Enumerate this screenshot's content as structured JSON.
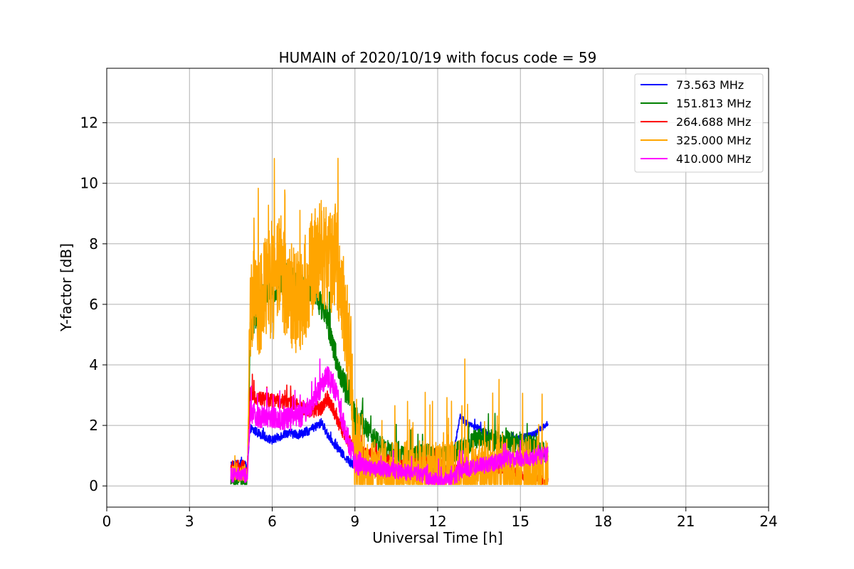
{
  "chart_data": {
    "type": "line",
    "title": "HUMAIN of 2020/10/19 with focus code = 59",
    "xlabel": "Universal Time [h]",
    "ylabel": "Y-factor [dB]",
    "xlim": [
      0,
      24
    ],
    "ylim": [
      -0.7,
      13.8
    ],
    "xticks": [
      0,
      3,
      6,
      9,
      12,
      15,
      18,
      21,
      24
    ],
    "yticks": [
      0,
      2,
      4,
      6,
      8,
      10,
      12
    ],
    "grid": true,
    "legend_position": "top-right",
    "series": [
      {
        "name": " 73.563 MHz",
        "color": "#0000ff",
        "x": [
          4.5,
          5.0,
          5.1,
          5.2,
          5.5,
          6.0,
          6.5,
          7.0,
          7.5,
          7.8,
          8.0,
          8.5,
          9.0,
          9.5,
          10.0,
          10.5,
          11.0,
          11.5,
          12.0,
          12.5,
          12.8,
          13.0,
          13.5,
          14.0,
          14.5,
          15.0,
          15.5,
          16.0
        ],
        "y": [
          0.7,
          0.7,
          0.6,
          1.9,
          1.75,
          1.5,
          1.75,
          1.7,
          1.9,
          2.1,
          1.7,
          1.1,
          0.6,
          0.45,
          0.4,
          0.45,
          0.55,
          0.6,
          0.5,
          0.6,
          2.3,
          2.1,
          1.9,
          1.6,
          1.5,
          1.6,
          1.7,
          2.1
        ],
        "noise": 0.15
      },
      {
        "name": "151.813 MHz",
        "color": "#008000",
        "x": [
          4.5,
          5.0,
          5.1,
          5.2,
          5.5,
          6.0,
          6.5,
          7.0,
          7.5,
          8.0,
          8.5,
          8.8,
          9.0,
          9.5,
          10.0,
          10.5,
          11.0,
          11.5,
          12.0,
          12.5,
          13.0,
          13.5,
          14.0,
          14.5,
          15.0,
          15.5,
          16.0
        ],
        "y": [
          0.2,
          0.2,
          0.15,
          5.0,
          6.0,
          6.5,
          7.0,
          6.5,
          6.5,
          5.5,
          3.5,
          3.0,
          2.2,
          1.8,
          1.3,
          1.0,
          1.0,
          1.1,
          1.0,
          1.0,
          1.3,
          1.6,
          1.5,
          1.5,
          1.4,
          1.3,
          1.0
        ],
        "noise": 0.5
      },
      {
        "name": "264.688 MHz",
        "color": "#ff0000",
        "x": [
          4.5,
          5.0,
          5.1,
          5.2,
          5.5,
          6.0,
          6.5,
          7.0,
          7.5,
          7.8,
          8.0,
          8.2,
          8.5,
          9.0,
          9.5,
          10.0,
          10.5,
          11.0,
          11.5,
          12.0,
          12.5,
          13.0,
          13.5,
          14.0,
          14.5,
          15.0,
          15.5,
          16.0
        ],
        "y": [
          0.6,
          0.6,
          0.55,
          3.0,
          2.9,
          2.8,
          2.8,
          2.6,
          2.5,
          2.6,
          2.9,
          2.6,
          1.9,
          1.2,
          1.1,
          0.9,
          0.7,
          0.7,
          0.8,
          0.8,
          0.6,
          0.55,
          0.6,
          0.6,
          0.55,
          0.35,
          0.2,
          0.15
        ],
        "noise": 0.25
      },
      {
        "name": "325.000 MHz",
        "color": "#ffa500",
        "x": [
          4.5,
          5.0,
          5.1,
          5.2,
          5.3,
          5.5,
          5.8,
          6.0,
          6.3,
          6.6,
          6.9,
          7.2,
          7.5,
          7.8,
          8.0,
          8.3,
          8.6,
          8.9,
          9.0,
          9.3,
          9.6,
          10.0,
          10.5,
          11.0,
          11.5,
          12.0,
          12.5,
          13.0,
          13.5,
          14.0,
          14.5,
          15.0,
          15.5,
          16.0
        ],
        "y": [
          0.4,
          0.4,
          0.35,
          5.0,
          6.5,
          6.0,
          6.8,
          6.5,
          7.2,
          6.4,
          6.0,
          6.5,
          7.5,
          7.8,
          7.4,
          7.6,
          6.0,
          3.5,
          1.2,
          0.6,
          0.3,
          0.2,
          0.2,
          0.25,
          0.3,
          0.2,
          0.2,
          0.3,
          0.3,
          0.3,
          0.3,
          0.35,
          0.4,
          0.4
        ],
        "noise": 1.8
      },
      {
        "name": "410.000 MHz",
        "color": "#ff00ff",
        "x": [
          4.5,
          5.0,
          5.1,
          5.2,
          5.5,
          6.0,
          6.5,
          7.0,
          7.5,
          7.8,
          8.0,
          8.3,
          8.6,
          9.0,
          9.5,
          10.0,
          10.5,
          11.0,
          11.5,
          12.0,
          12.5,
          13.0,
          13.5,
          14.0,
          14.5,
          15.0,
          15.5,
          16.0
        ],
        "y": [
          0.35,
          0.35,
          0.3,
          2.4,
          2.3,
          2.3,
          2.2,
          2.3,
          2.8,
          3.3,
          3.6,
          3.2,
          2.0,
          0.8,
          0.6,
          0.55,
          0.5,
          0.45,
          0.35,
          0.15,
          0.25,
          0.55,
          0.65,
          0.75,
          0.9,
          0.9,
          0.95,
          1.05
        ],
        "noise": 0.4
      }
    ]
  }
}
